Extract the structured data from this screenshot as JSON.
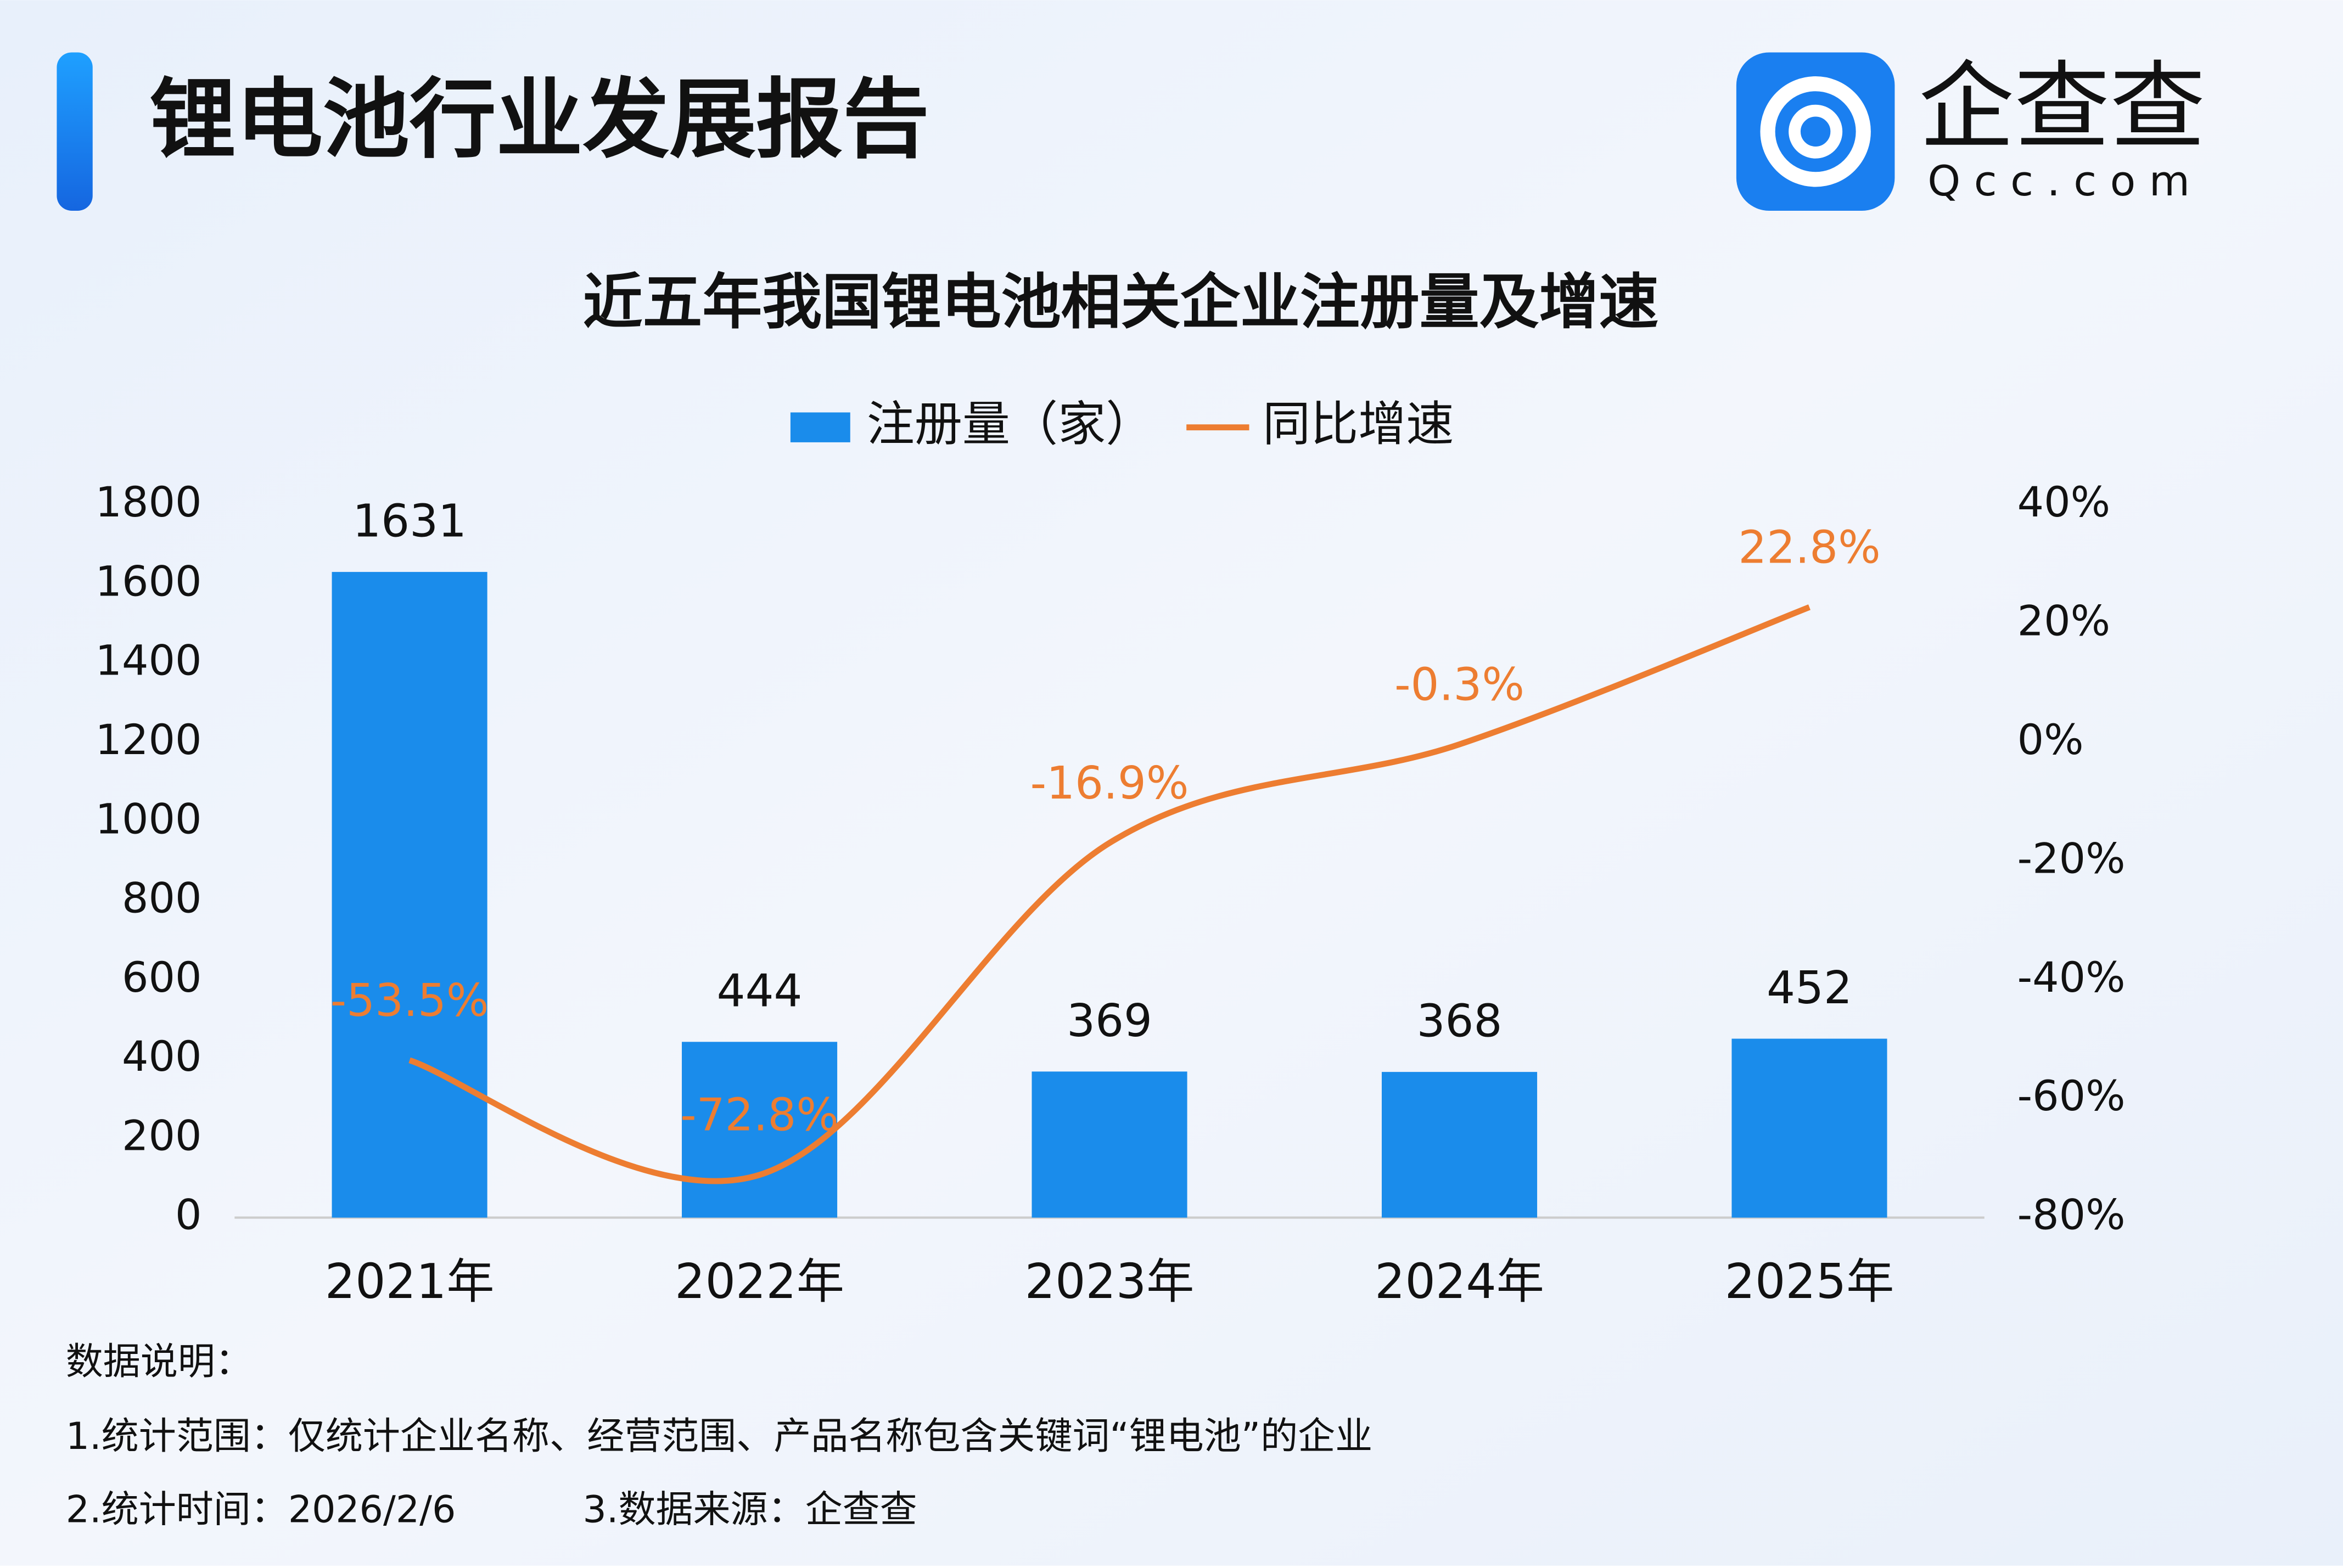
{
  "header": {
    "title": "锂电池行业发展报告",
    "logo_text": "企查查",
    "logo_domain": "Qcc.com"
  },
  "chart_data": {
    "type": "bar",
    "title": "近五年我国锂电池相关企业注册量及增速",
    "categories": [
      "2021年",
      "2022年",
      "2023年",
      "2024年",
      "2025年"
    ],
    "series": [
      {
        "name": "注册量（家）",
        "type": "bar",
        "color": "#1a8ceb",
        "values": [
          1631,
          444,
          369,
          368,
          452
        ]
      },
      {
        "name": "同比增速",
        "type": "line",
        "axis": "y2",
        "color": "#ed7d31",
        "values": [
          -53.5,
          -72.8,
          -16.9,
          -0.3,
          22.8
        ],
        "value_labels": [
          "-53.5%",
          "-72.8%",
          "-16.9%",
          "-0.3%",
          "22.8%"
        ]
      }
    ],
    "ylim": [
      0,
      1800
    ],
    "yticks": [
      0,
      200,
      400,
      600,
      800,
      1000,
      1200,
      1400,
      1600,
      1800
    ],
    "y2lim": [
      -80,
      40
    ],
    "y2ticks": [
      {
        "value": -80,
        "label": "-80%"
      },
      {
        "value": -60,
        "label": "-60%"
      },
      {
        "value": -40,
        "label": "-40%"
      },
      {
        "value": -20,
        "label": "-20%"
      },
      {
        "value": 0,
        "label": "0%"
      },
      {
        "value": 20,
        "label": "20%"
      },
      {
        "value": 40,
        "label": "40%"
      }
    ],
    "grid": false,
    "legend": "top"
  },
  "notes": {
    "heading": "数据说明：",
    "lines": [
      "1.统计范围：仅统计企业名称、经营范围、产品名称包含关键词“锂电池”的企业",
      "2.统计时间：2026/2/6",
      "3.数据来源：企查查"
    ]
  }
}
